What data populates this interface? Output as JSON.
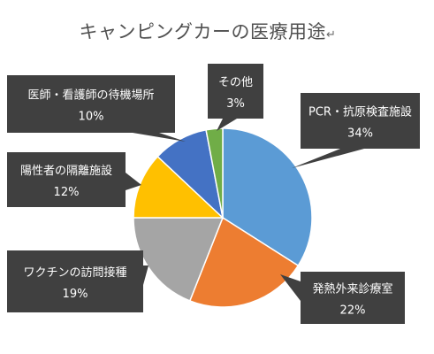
{
  "chart_data": {
    "type": "pie",
    "title": "キャンピングカーの医療用途",
    "title_suffix_glyph": "↵",
    "series": [
      {
        "label": "PCR・抗原検査施設",
        "value": 34,
        "value_label": "34%",
        "color": "#5b9bd5"
      },
      {
        "label": "発熱外来診療室",
        "value": 22,
        "value_label": "22%",
        "color": "#ed7d31"
      },
      {
        "label": "ワクチンの訪問接種",
        "value": 19,
        "value_label": "19%",
        "color": "#a5a5a5"
      },
      {
        "label": "陽性者の隔離施設",
        "value": 12,
        "value_label": "12%",
        "color": "#ffc000"
      },
      {
        "label": "医師・看護師の待機場所",
        "value": 10,
        "value_label": "10%",
        "color": "#4472c4"
      },
      {
        "label": "その他",
        "value": 3,
        "value_label": "3%",
        "color": "#70ad47"
      }
    ],
    "start_angle": "12 o'clock",
    "direction": "clockwise",
    "labels_style": "dark callout boxes",
    "callout_color": "#404040"
  }
}
